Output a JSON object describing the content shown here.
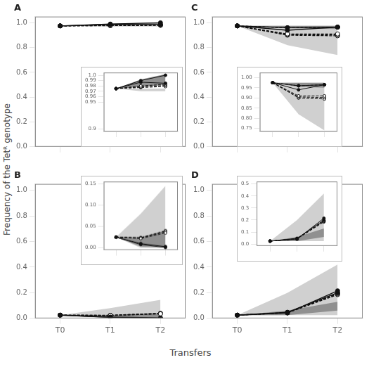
{
  "chart_data": [
    {
      "type": "line",
      "title": "A",
      "ylabel": "Frequency of the Tetᴿ genotype",
      "categories": [
        null,
        null,
        null
      ],
      "ylim": [
        0.0,
        1.05
      ],
      "yticks": [
        {
          "value": 0,
          "label": "0.0"
        },
        0.2,
        0.4,
        0.6,
        0.8,
        {
          "value": 1,
          "label": "1.0"
        }
      ],
      "grid": false,
      "series": [
        {
          "type": "area",
          "color": "#d0d0d0",
          "low": [
            0.975,
            0.97,
            0.97
          ],
          "high": [
            0.975,
            0.975,
            0.975
          ]
        },
        {
          "type": "area",
          "color": "#909090",
          "low": [
            0.975,
            0.978,
            0.982
          ],
          "high": [
            0.975,
            0.992,
            1.002
          ]
        },
        {
          "type": "line",
          "color": "#111111",
          "line_style": "solid",
          "marker": "filled",
          "values": [
            0.975,
            0.99,
            1.0
          ]
        },
        {
          "type": "line",
          "color": "#111111",
          "line_style": "solid",
          "marker": "filled",
          "values": [
            0.975,
            0.987,
            0.985
          ]
        },
        {
          "type": "line",
          "color": "#111111",
          "line_style": "dashed",
          "marker": "open",
          "values": [
            0.975,
            0.98,
            0.983
          ]
        },
        {
          "type": "line",
          "color": "#111111",
          "line_style": "dashed",
          "marker": "open",
          "values": [
            0.975,
            0.978,
            0.981
          ]
        },
        {
          "type": "line",
          "color": "#111111",
          "line_style": "dashed",
          "marker": "open",
          "values": [
            0.975,
            0.977,
            0.979
          ]
        }
      ]
    },
    {
      "type": "line",
      "categories": [
        null,
        null,
        null
      ],
      "ylim": [
        0.895,
        1.005
      ],
      "yticks": [
        0.9,
        0.95,
        0.96,
        0.97,
        0.98,
        0.99,
        {
          "value": 1,
          "label": "1.0"
        }
      ],
      "grid": false,
      "series": [
        {
          "type": "area",
          "color": "#d0d0d0",
          "low": [
            0.975,
            0.97,
            0.97
          ],
          "high": [
            0.975,
            0.975,
            0.975
          ]
        },
        {
          "type": "area",
          "color": "#909090",
          "low": [
            0.975,
            0.978,
            0.982
          ],
          "high": [
            0.975,
            0.992,
            1.002
          ]
        },
        {
          "type": "line",
          "color": "#111111",
          "line_style": "solid",
          "marker": "filled",
          "values": [
            0.975,
            0.99,
            1.0
          ]
        },
        {
          "type": "line",
          "color": "#111111",
          "line_style": "solid",
          "marker": "filled",
          "values": [
            0.975,
            0.987,
            0.985
          ]
        },
        {
          "type": "line",
          "color": "#111111",
          "line_style": "dashed",
          "marker": "open",
          "values": [
            0.975,
            0.98,
            0.983
          ]
        },
        {
          "type": "line",
          "color": "#111111",
          "line_style": "dashed",
          "marker": "open",
          "values": [
            0.975,
            0.978,
            0.981
          ]
        },
        {
          "type": "line",
          "color": "#111111",
          "line_style": "dashed",
          "marker": "open",
          "values": [
            0.975,
            0.977,
            0.979
          ]
        }
      ]
    },
    {
      "type": "line",
      "title": "C",
      "categories": [
        null,
        null,
        null
      ],
      "ylim": [
        0.0,
        1.05
      ],
      "yticks": [
        {
          "value": 0,
          "label": "0.0"
        },
        0.2,
        0.4,
        0.6,
        0.8,
        {
          "value": 1,
          "label": "1.0"
        }
      ],
      "grid": false,
      "series": [
        {
          "type": "area",
          "color": "#d0d0d0",
          "low": [
            0.975,
            0.82,
            0.74
          ],
          "high": [
            0.975,
            0.975,
            0.975
          ]
        },
        {
          "type": "area",
          "color": "#909090",
          "low": [
            0.975,
            0.955,
            0.95
          ],
          "high": [
            0.975,
            0.975,
            0.975
          ]
        },
        {
          "type": "line",
          "color": "#111111",
          "line_style": "solid",
          "marker": "filled",
          "values": [
            0.975,
            0.96,
            0.965
          ]
        },
        {
          "type": "line",
          "color": "#111111",
          "line_style": "solid",
          "marker": "filled",
          "values": [
            0.975,
            0.94,
            0.965
          ]
        },
        {
          "type": "line",
          "color": "#111111",
          "line_style": "dashed",
          "marker": "open",
          "values": [
            0.975,
            0.96,
            0.965
          ]
        },
        {
          "type": "line",
          "color": "#111111",
          "line_style": "dashed",
          "marker": "open",
          "values": [
            0.975,
            0.91,
            0.91
          ]
        },
        {
          "type": "line",
          "color": "#111111",
          "line_style": "dashed",
          "marker": "open",
          "values": [
            0.975,
            0.905,
            0.902
          ]
        },
        {
          "type": "line",
          "color": "#111111",
          "line_style": "dashed",
          "marker": "open",
          "values": [
            0.975,
            0.9,
            0.895
          ]
        }
      ]
    },
    {
      "type": "line",
      "categories": [
        null,
        null,
        null
      ],
      "ylim": [
        0.735,
        1.025
      ],
      "yticks": [
        0.75,
        {
          "value": 0.8,
          "label": "0.80"
        },
        0.85,
        {
          "value": 0.9,
          "label": "0.90"
        },
        0.95,
        {
          "value": 1,
          "label": "1.00"
        }
      ],
      "grid": false,
      "series": [
        {
          "type": "area",
          "color": "#d0d0d0",
          "low": [
            0.975,
            0.82,
            0.74
          ],
          "high": [
            0.975,
            0.975,
            0.975
          ]
        },
        {
          "type": "area",
          "color": "#909090",
          "low": [
            0.975,
            0.955,
            0.95
          ],
          "high": [
            0.975,
            0.975,
            0.975
          ]
        },
        {
          "type": "line",
          "color": "#111111",
          "line_style": "solid",
          "marker": "filled",
          "values": [
            0.975,
            0.96,
            0.965
          ]
        },
        {
          "type": "line",
          "color": "#111111",
          "line_style": "solid",
          "marker": "filled",
          "values": [
            0.975,
            0.94,
            0.965
          ]
        },
        {
          "type": "line",
          "color": "#111111",
          "line_style": "dashed",
          "marker": "open",
          "values": [
            0.975,
            0.96,
            0.965
          ]
        },
        {
          "type": "line",
          "color": "#111111",
          "line_style": "dashed",
          "marker": "open",
          "values": [
            0.975,
            0.91,
            0.91
          ]
        },
        {
          "type": "line",
          "color": "#111111",
          "line_style": "dashed",
          "marker": "open",
          "values": [
            0.975,
            0.905,
            0.902
          ]
        },
        {
          "type": "line",
          "color": "#111111",
          "line_style": "dashed",
          "marker": "open",
          "values": [
            0.975,
            0.9,
            0.895
          ]
        }
      ]
    },
    {
      "type": "line",
      "title": "B",
      "xlabel": "Transfers",
      "categories": [
        "T0",
        "T1",
        "T2"
      ],
      "ylim": [
        0.0,
        1.05
      ],
      "yticks": [
        {
          "value": 0,
          "label": "0.0"
        },
        0.2,
        0.4,
        0.6,
        0.8,
        {
          "value": 1,
          "label": "1.0"
        }
      ],
      "grid": false,
      "series": [
        {
          "type": "area",
          "color": "#d0d0d0",
          "low": [
            0.025,
            0.0,
            0.0
          ],
          "high": [
            0.025,
            0.08,
            0.145
          ]
        },
        {
          "type": "area",
          "color": "#909090",
          "low": [
            0.025,
            0.003,
            0.001
          ],
          "high": [
            0.025,
            0.025,
            0.04
          ]
        },
        {
          "type": "line",
          "color": "#111111",
          "line_style": "solid",
          "marker": "filled",
          "values": [
            0.025,
            0.008,
            0.001
          ]
        },
        {
          "type": "line",
          "color": "#111111",
          "line_style": "solid",
          "marker": "filled",
          "values": [
            0.025,
            0.01,
            0.003
          ]
        },
        {
          "type": "line",
          "color": "#111111",
          "line_style": "dashed",
          "marker": "open",
          "values": [
            0.025,
            0.022,
            0.035
          ]
        },
        {
          "type": "line",
          "color": "#111111",
          "line_style": "dashed",
          "marker": "open",
          "values": [
            0.025,
            0.023,
            0.038
          ]
        },
        {
          "type": "line",
          "color": "#111111",
          "line_style": "dashed",
          "marker": "open",
          "values": [
            0.025,
            0.024,
            0.04
          ]
        }
      ]
    },
    {
      "type": "line",
      "categories": [
        null,
        null,
        null
      ],
      "ylim": [
        -0.005,
        0.155
      ],
      "yticks": [
        {
          "value": 0,
          "label": "0.00"
        },
        0.05,
        {
          "value": 0.1,
          "label": "0.10"
        },
        0.15
      ],
      "grid": false,
      "series": [
        {
          "type": "area",
          "color": "#d0d0d0",
          "low": [
            0.025,
            0.0,
            0.0
          ],
          "high": [
            0.025,
            0.08,
            0.145
          ]
        },
        {
          "type": "area",
          "color": "#909090",
          "low": [
            0.025,
            0.003,
            0.001
          ],
          "high": [
            0.025,
            0.025,
            0.04
          ]
        },
        {
          "type": "line",
          "color": "#111111",
          "line_style": "solid",
          "marker": "filled",
          "values": [
            0.025,
            0.008,
            0.001
          ]
        },
        {
          "type": "line",
          "color": "#111111",
          "line_style": "solid",
          "marker": "filled",
          "values": [
            0.025,
            0.01,
            0.003
          ]
        },
        {
          "type": "line",
          "color": "#111111",
          "line_style": "dashed",
          "marker": "open",
          "values": [
            0.025,
            0.022,
            0.035
          ]
        },
        {
          "type": "line",
          "color": "#111111",
          "line_style": "dashed",
          "marker": "open",
          "values": [
            0.025,
            0.023,
            0.038
          ]
        },
        {
          "type": "line",
          "color": "#111111",
          "line_style": "dashed",
          "marker": "open",
          "values": [
            0.025,
            0.024,
            0.04
          ]
        }
      ]
    },
    {
      "type": "line",
      "title": "D",
      "categories": [
        "T0",
        "T1",
        "T2"
      ],
      "ylim": [
        0.0,
        1.05
      ],
      "yticks": [
        {
          "value": 0,
          "label": "0.0"
        },
        0.2,
        0.4,
        0.6,
        0.8,
        {
          "value": 1,
          "label": "1.0"
        }
      ],
      "grid": false,
      "series": [
        {
          "type": "area",
          "color": "#d0d0d0",
          "low": [
            0.025,
            0.025,
            0.025
          ],
          "high": [
            0.025,
            0.2,
            0.42
          ]
        },
        {
          "type": "area",
          "color": "#909090",
          "low": [
            0.025,
            0.025,
            0.06
          ],
          "high": [
            0.025,
            0.06,
            0.13
          ]
        },
        {
          "type": "line",
          "color": "#111111",
          "line_style": "solid",
          "marker": "filled",
          "values": [
            0.025,
            0.042,
            0.215
          ]
        },
        {
          "type": "line",
          "color": "#111111",
          "line_style": "solid",
          "marker": "filled",
          "values": [
            0.025,
            0.048,
            0.2
          ]
        },
        {
          "type": "line",
          "color": "#111111",
          "line_style": "dashed",
          "marker": "open",
          "values": [
            0.025,
            0.045,
            0.195
          ]
        },
        {
          "type": "line",
          "color": "#111111",
          "line_style": "dashed",
          "marker": "open",
          "values": [
            0.025,
            0.044,
            0.19
          ]
        },
        {
          "type": "line",
          "color": "#111111",
          "line_style": "dashed",
          "marker": "open",
          "values": [
            0.025,
            0.043,
            0.185
          ]
        }
      ]
    },
    {
      "type": "line",
      "categories": [
        null,
        null,
        null
      ],
      "ylim": [
        -0.015,
        0.52
      ],
      "yticks": [
        {
          "value": 0,
          "label": "0.0"
        },
        0.1,
        0.2,
        0.3,
        0.4,
        0.5
      ],
      "grid": false,
      "series": [
        {
          "type": "area",
          "color": "#d0d0d0",
          "low": [
            0.025,
            0.025,
            0.025
          ],
          "high": [
            0.025,
            0.2,
            0.42
          ]
        },
        {
          "type": "area",
          "color": "#909090",
          "low": [
            0.025,
            0.025,
            0.06
          ],
          "high": [
            0.025,
            0.06,
            0.13
          ]
        },
        {
          "type": "line",
          "color": "#111111",
          "line_style": "solid",
          "marker": "filled",
          "values": [
            0.025,
            0.042,
            0.215
          ]
        },
        {
          "type": "line",
          "color": "#111111",
          "line_style": "solid",
          "marker": "filled",
          "values": [
            0.025,
            0.048,
            0.2
          ]
        },
        {
          "type": "line",
          "color": "#111111",
          "line_style": "dashed",
          "marker": "open",
          "values": [
            0.025,
            0.045,
            0.195
          ]
        },
        {
          "type": "line",
          "color": "#111111",
          "line_style": "dashed",
          "marker": "open",
          "values": [
            0.025,
            0.044,
            0.19
          ]
        },
        {
          "type": "line",
          "color": "#111111",
          "line_style": "dashed",
          "marker": "open",
          "values": [
            0.025,
            0.043,
            0.185
          ]
        }
      ]
    }
  ]
}
